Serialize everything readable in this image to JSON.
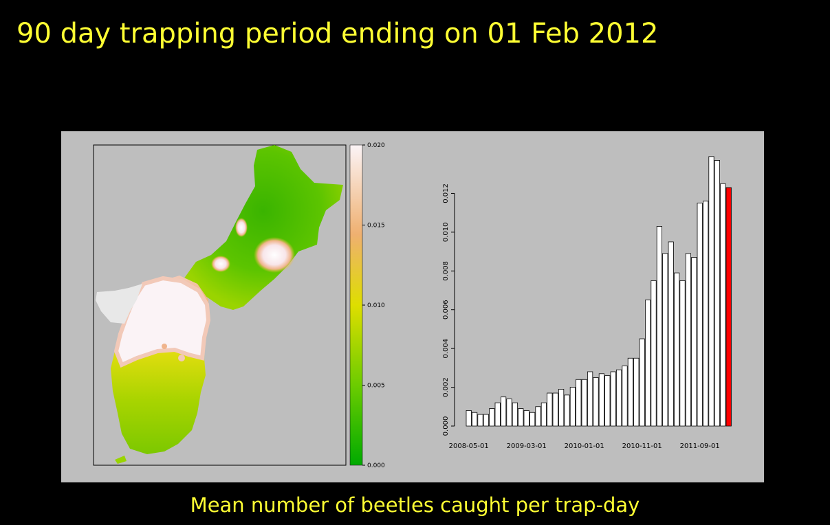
{
  "slide": {
    "title": "90 day trapping period ending on 01 Feb 2012",
    "caption": "Mean number of beetles caught per trap-day"
  },
  "colors": {
    "background": "#000000",
    "text_accent": "#ffff33",
    "figure_bg": "#bebebe",
    "bar_fill": "#ffffff",
    "highlight_bar": "#ff0000",
    "scale_low": "#00aa00",
    "scale_mid": "#dddd00",
    "scale_high": "#f1b58f",
    "scale_top": "#fbf3f6"
  },
  "chart_data": [
    {
      "type": "heatmap",
      "description": "Spatial map of mean beetles caught per trap-day",
      "colorbar": {
        "range": [
          0,
          0.02
        ],
        "ticks": [
          "0.000",
          "0.005",
          "0.010",
          "0.015",
          "0.020"
        ],
        "tick_values": [
          0,
          0.005,
          0.01,
          0.015,
          0.02
        ]
      }
    },
    {
      "type": "bar",
      "xlabel": "",
      "ylabel": "",
      "ylim": [
        0,
        0.014
      ],
      "yticks": [
        "0.000",
        "0.002",
        "0.004",
        "0.006",
        "0.008",
        "0.010",
        "0.012"
      ],
      "ytick_values": [
        0,
        0.002,
        0.004,
        0.006,
        0.008,
        0.01,
        0.012
      ],
      "xtick_labels": [
        "2008-05-01",
        "2009-03-01",
        "2010-01-01",
        "2010-11-01",
        "2011-09-01"
      ],
      "xtick_bar_index": [
        0,
        10,
        20,
        30,
        40
      ],
      "values": [
        0.0008,
        0.0007,
        0.0006,
        0.0006,
        0.0009,
        0.0012,
        0.0015,
        0.0014,
        0.0012,
        0.0009,
        0.0008,
        0.0007,
        0.001,
        0.0012,
        0.0017,
        0.0017,
        0.0019,
        0.0016,
        0.002,
        0.0024,
        0.0024,
        0.0028,
        0.0025,
        0.0027,
        0.0026,
        0.0028,
        0.0029,
        0.0031,
        0.0035,
        0.0035,
        0.0045,
        0.0065,
        0.0075,
        0.0103,
        0.0089,
        0.0095,
        0.0079,
        0.0075,
        0.0089,
        0.0087,
        0.0115,
        0.0116,
        0.0139,
        0.0137,
        0.0125,
        0.0123
      ],
      "highlight_index": 45
    }
  ]
}
